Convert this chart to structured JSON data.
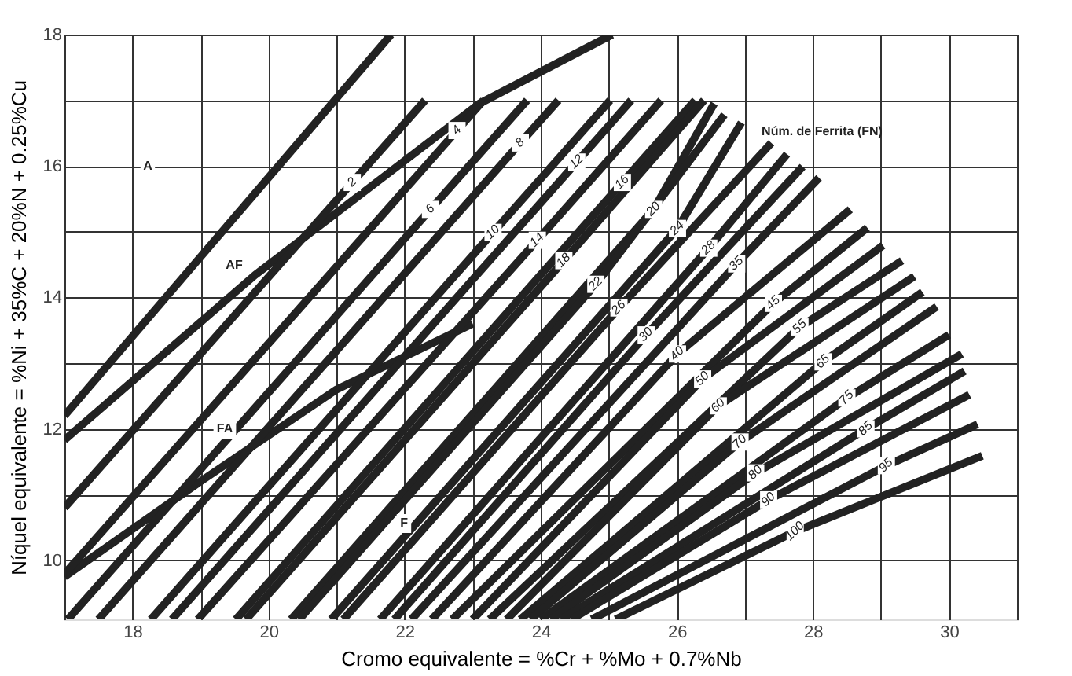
{
  "chart_data": {
    "type": "line",
    "xlabel": "Cromo equivalente = %Cr + %Mo + 0.7%Nb",
    "ylabel": "Níquel equivalente  = %Ni + 35%C + 20%N + 0.25%Cu",
    "xlim": [
      17,
      31
    ],
    "ylim": [
      9.1,
      18
    ],
    "xticks": [
      {
        "value": 17,
        "label": null
      },
      18,
      {
        "value": 19,
        "label": null
      },
      20,
      {
        "value": 21,
        "label": null
      },
      22,
      {
        "value": 23,
        "label": null
      },
      24,
      {
        "value": 25,
        "label": null
      },
      26,
      {
        "value": 27,
        "label": null
      },
      28,
      {
        "value": 29,
        "label": null
      },
      30,
      {
        "value": 31,
        "label": null
      }
    ],
    "yticks": [
      10,
      {
        "value": 11,
        "label": null
      },
      12,
      {
        "value": 13,
        "label": null
      },
      14,
      {
        "value": 15,
        "label": null
      },
      16,
      {
        "value": 17,
        "label": null
      },
      18
    ],
    "grid": true,
    "series": [
      {
        "color": "#222222",
        "x": [
          17,
          21.8
        ],
        "values": [
          12.2,
          18
        ]
      },
      {
        "color": "#222222",
        "x": [
          17,
          19.8,
          23.1,
          25.05
        ],
        "values": [
          11.83,
          14.34,
          16.95,
          18
        ]
      },
      {
        "color": "#222222",
        "x": [
          17,
          19.0,
          21.0,
          23.0
        ],
        "values": [
          9.75,
          11.2,
          12.6,
          13.6
        ]
      },
      {
        "name": "2",
        "color": "#222222",
        "x": [
          17,
          21.23,
          22.3
        ],
        "values": [
          10.8,
          15.75,
          17
        ]
      },
      {
        "name": "4",
        "color": "#222222",
        "x": [
          17,
          22.77,
          23.16
        ],
        "values": [
          9.79,
          16.54,
          17
        ]
      },
      {
        "name": "6",
        "color": "#222222",
        "x": [
          17.05,
          22.38,
          23.8
        ],
        "values": [
          9.1,
          15.34,
          17
        ]
      },
      {
        "name": "8",
        "color": "#222222",
        "x": [
          17.5,
          23.7,
          24.26
        ],
        "values": [
          9.1,
          16.35,
          17
        ]
      },
      {
        "name": "10",
        "color": "#222222",
        "x": [
          18.27,
          23.3,
          25.02
        ],
        "values": [
          9.1,
          14.99,
          17
        ]
      },
      {
        "name": "12",
        "color": "#222222",
        "x": [
          18.58,
          24.53,
          25.33
        ],
        "values": [
          9.1,
          16.06,
          17
        ]
      },
      {
        "name": "14",
        "color": "#222222",
        "x": [
          18.96,
          23.95,
          25.77
        ],
        "values": [
          9.1,
          14.87,
          17
        ]
      },
      {
        "name": "16",
        "color": "#222222",
        "x": [
          19.52,
          25.2,
          26.27
        ],
        "values": [
          9.1,
          15.75,
          17
        ]
      },
      {
        "name": "18",
        "color": "#222222",
        "x": [
          19.67,
          24.34,
          26.4
        ],
        "values": [
          9.1,
          14.56,
          17
        ]
      },
      {
        "name": "20",
        "color": "#222222",
        "x": [
          20.33,
          25.66,
          26.55
        ],
        "values": [
          9.1,
          15.34,
          16.95
        ]
      },
      {
        "name": "22",
        "color": "#222222",
        "x": [
          20.45,
          24.81,
          26.7
        ],
        "values": [
          9.1,
          14.2,
          16.78
        ]
      },
      {
        "name": "24",
        "color": "#222222",
        "x": [
          20.92,
          26.01,
          26.95
        ],
        "values": [
          9.1,
          15.05,
          16.66
        ]
      },
      {
        "name": "26",
        "color": "#222222",
        "x": [
          21.1,
          25.15,
          27.39
        ],
        "values": [
          9.1,
          13.84,
          16.35
        ]
      },
      {
        "name": "28",
        "color": "#222222",
        "x": [
          21.64,
          26.47,
          27.62
        ],
        "values": [
          9.1,
          14.75,
          16.18
        ]
      },
      {
        "name": "30",
        "color": "#222222",
        "x": [
          21.85,
          25.55,
          27.85
        ],
        "values": [
          9.1,
          13.43,
          15.99
        ]
      },
      {
        "name": "35",
        "color": "#222222",
        "x": [
          22.1,
          26.88,
          28.09
        ],
        "values": [
          9.1,
          14.51,
          15.82
        ]
      },
      {
        "name": "40",
        "color": "#222222",
        "x": [
          22.4,
          26.01,
          28.55
        ],
        "values": [
          9.1,
          13.14,
          15.34
        ]
      },
      {
        "name": "45",
        "color": "#222222",
        "x": [
          22.7,
          27.42,
          28.8
        ],
        "values": [
          9.1,
          13.91,
          15.06
        ]
      },
      {
        "name": "50",
        "color": "#222222",
        "x": [
          23.0,
          26.38,
          29.03
        ],
        "values": [
          9.1,
          12.76,
          14.79
        ]
      },
      {
        "name": "55",
        "color": "#222222",
        "x": [
          23.25,
          27.81,
          29.31
        ],
        "values": [
          9.1,
          13.55,
          14.56
        ]
      },
      {
        "name": "60",
        "color": "#222222",
        "x": [
          23.5,
          26.61,
          29.49
        ],
        "values": [
          9.1,
          12.35,
          14.32
        ]
      },
      {
        "name": "65",
        "color": "#222222",
        "x": [
          23.7,
          28.15,
          29.61
        ],
        "values": [
          9.1,
          13.02,
          14.08
        ]
      },
      {
        "name": "70",
        "color": "#222222",
        "x": [
          23.85,
          26.93,
          29.82
        ],
        "values": [
          9.1,
          11.8,
          13.86
        ]
      },
      {
        "name": "75",
        "color": "#222222",
        "x": [
          24.0,
          28.5,
          30.0
        ],
        "values": [
          9.1,
          12.47,
          13.43
        ]
      },
      {
        "name": "80",
        "color": "#222222",
        "x": [
          24.15,
          27.16,
          30.19
        ],
        "values": [
          9.1,
          11.33,
          13.14
        ]
      },
      {
        "name": "85",
        "color": "#222222",
        "x": [
          24.3,
          28.78,
          30.23
        ],
        "values": [
          9.1,
          12.0,
          12.88
        ]
      },
      {
        "name": "90",
        "color": "#222222",
        "x": [
          24.45,
          27.35,
          30.3
        ],
        "values": [
          9.1,
          10.92,
          12.52
        ]
      },
      {
        "name": "95",
        "color": "#222222",
        "x": [
          24.75,
          29.08,
          30.42
        ],
        "values": [
          9.1,
          11.44,
          12.07
        ]
      },
      {
        "name": "100",
        "color": "#222222",
        "x": [
          25.1,
          27.74,
          30.49
        ],
        "values": [
          9.1,
          10.44,
          11.59
        ]
      }
    ],
    "annotations": [
      "A",
      "AF",
      "FA",
      "F",
      "Núm. de Ferrita (FN)"
    ]
  }
}
